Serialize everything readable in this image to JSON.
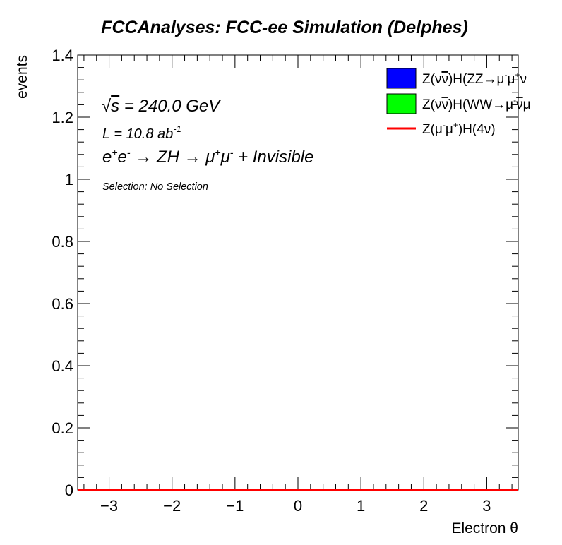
{
  "chart_data": {
    "type": "bar",
    "title": "FCCAnalyses: FCC-ee Simulation (Delphes)",
    "xlabel": "Electron θ",
    "ylabel": "events",
    "xlim": [
      -3.5,
      3.5
    ],
    "ylim": [
      0,
      1.4
    ],
    "xticks": [
      -3,
      -2,
      -1,
      0,
      1,
      2,
      3
    ],
    "xtick_labels": [
      "−3",
      "−2",
      "−1",
      "0",
      "1",
      "2",
      "3"
    ],
    "yticks": [
      0,
      0.2,
      0.4,
      0.6,
      0.8,
      1,
      1.2,
      1.4
    ],
    "ytick_labels": [
      "0",
      "0.2",
      "0.4",
      "0.6",
      "0.8",
      "1",
      "1.2",
      "1.4"
    ],
    "grid": false,
    "legend_position": "top-right",
    "annotations": {
      "sqrt_s": "√s = 240.0 GeV",
      "lumi": "L = 10.8 ab-1",
      "process": "e+e- → ZH → μ+μ- + Invisible",
      "selection": "Selection: No Selection"
    },
    "series": [
      {
        "name": "Z(νν̄)H(ZZ→μ-μ+ν",
        "style": "filled",
        "color": "#0000ff",
        "values": [
          0,
          0,
          0,
          0,
          0,
          0,
          0
        ]
      },
      {
        "name": "Z(νν̄)H(WW→μ-ν̄μ",
        "style": "filled",
        "color": "#00ff00",
        "values": [
          0,
          0,
          0,
          0,
          0,
          0,
          0
        ]
      },
      {
        "name": "Z(μ-μ+)H(4ν)",
        "style": "line",
        "color": "#ff0000",
        "values": [
          0,
          0,
          0,
          0,
          0,
          0,
          0
        ]
      }
    ]
  }
}
